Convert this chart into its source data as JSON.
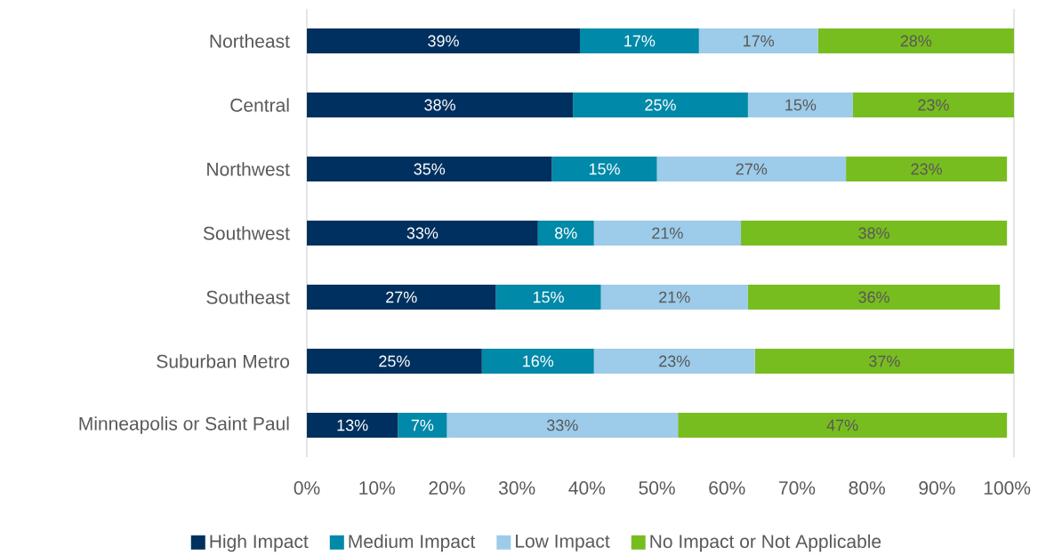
{
  "chart_data": {
    "type": "bar",
    "orientation": "horizontal",
    "stacked": true,
    "categories": [
      "Northeast",
      "Central",
      "Northwest",
      "Southwest",
      "Southeast",
      "Suburban Metro",
      "Minneapolis or Saint Paul"
    ],
    "series": [
      {
        "name": "High Impact",
        "color": "#00305f",
        "values": [
          39,
          38,
          35,
          33,
          27,
          25,
          13
        ],
        "value_labels": [
          "39%",
          "38%",
          "35%",
          "33%",
          "27%",
          "25%",
          "13%"
        ]
      },
      {
        "name": "Medium Impact",
        "color": "#0089a8",
        "values": [
          17,
          25,
          15,
          8,
          15,
          16,
          7
        ],
        "value_labels": [
          "17%",
          "25%",
          "15%",
          "8%",
          "15%",
          "16%",
          "7%"
        ]
      },
      {
        "name": "Low Impact",
        "color": "#9dcbea",
        "values": [
          17,
          15,
          27,
          21,
          21,
          23,
          33
        ],
        "value_labels": [
          "17%",
          "15%",
          "27%",
          "21%",
          "21%",
          "23%",
          "33%"
        ]
      },
      {
        "name": "No Impact or Not Applicable",
        "color": "#78bd1f",
        "values": [
          28,
          23,
          23,
          38,
          36,
          37,
          47
        ],
        "value_labels": [
          "28%",
          "23%",
          "23%",
          "38%",
          "36%",
          "37%",
          "47%"
        ]
      }
    ],
    "xlim": [
      0,
      101
    ],
    "xticks": [
      {
        "value": 0,
        "label": "0%"
      },
      {
        "value": 10,
        "label": "10%"
      },
      {
        "value": 20,
        "label": "20%"
      },
      {
        "value": 30,
        "label": "30%"
      },
      {
        "value": 40,
        "label": "40%"
      },
      {
        "value": 50,
        "label": "50%"
      },
      {
        "value": 60,
        "label": "60%"
      },
      {
        "value": 70,
        "label": "70%"
      },
      {
        "value": 80,
        "label": "80%"
      },
      {
        "value": 90,
        "label": "90%"
      },
      {
        "value": 100,
        "label": "100%"
      }
    ],
    "legend": "bottom",
    "grid": false
  }
}
